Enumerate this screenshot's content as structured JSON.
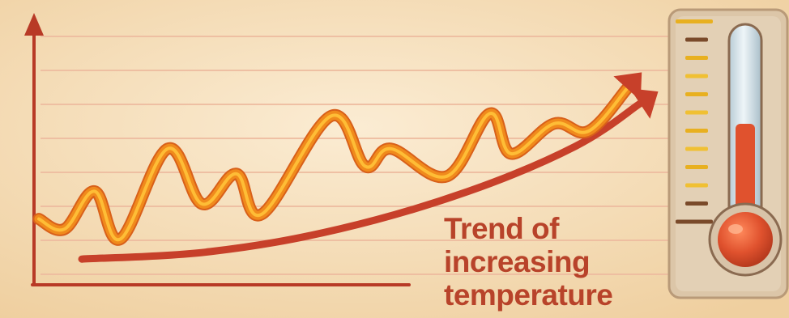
{
  "chart_data": {
    "type": "line",
    "title": "",
    "xlabel": "",
    "ylabel": "",
    "grid": true,
    "ylim": [
      0,
      10
    ],
    "xlim": [
      0,
      14
    ],
    "series": [
      {
        "values": [
          {
            "x": 0.0,
            "y": 2.4
          },
          {
            "x": 0.6,
            "y": 2.0
          },
          {
            "x": 1.3,
            "y": 3.5
          },
          {
            "x": 1.9,
            "y": 1.6
          },
          {
            "x": 3.0,
            "y": 5.2
          },
          {
            "x": 3.8,
            "y": 3.0
          },
          {
            "x": 4.6,
            "y": 4.2
          },
          {
            "x": 5.2,
            "y": 2.6
          },
          {
            "x": 6.8,
            "y": 6.5
          },
          {
            "x": 7.6,
            "y": 4.5
          },
          {
            "x": 8.2,
            "y": 5.2
          },
          {
            "x": 9.5,
            "y": 4.1
          },
          {
            "x": 10.5,
            "y": 6.6
          },
          {
            "x": 11.0,
            "y": 5.0
          },
          {
            "x": 12.0,
            "y": 6.2
          },
          {
            "x": 12.8,
            "y": 5.9
          },
          {
            "x": 13.7,
            "y": 7.6
          }
        ]
      },
      {
        "values": [
          {
            "x": 1.0,
            "y": 0.8
          },
          {
            "x": 4.0,
            "y": 1.1
          },
          {
            "x": 7.0,
            "y": 2.0
          },
          {
            "x": 10.0,
            "y": 3.5
          },
          {
            "x": 12.5,
            "y": 5.3
          },
          {
            "x": 14.0,
            "y": 7.0
          }
        ]
      }
    ]
  },
  "caption": {
    "line1": "Trend of",
    "line2": "increasing",
    "line3": "temperature"
  },
  "thermometer": {
    "icon": "thermometer-icon",
    "level": 0.55
  },
  "colors": {
    "background": "#f6dfb8",
    "grid": "#eebca0",
    "axis": "#b83a26",
    "fluctuating_line": "#f08a1c",
    "fluctuating_highlight": "#ffc23a",
    "trend_arrow": "#c7402a",
    "caption_text": "#b8432a",
    "mercury": "#e0522e",
    "thermometer_body": "#dcc6a8"
  }
}
